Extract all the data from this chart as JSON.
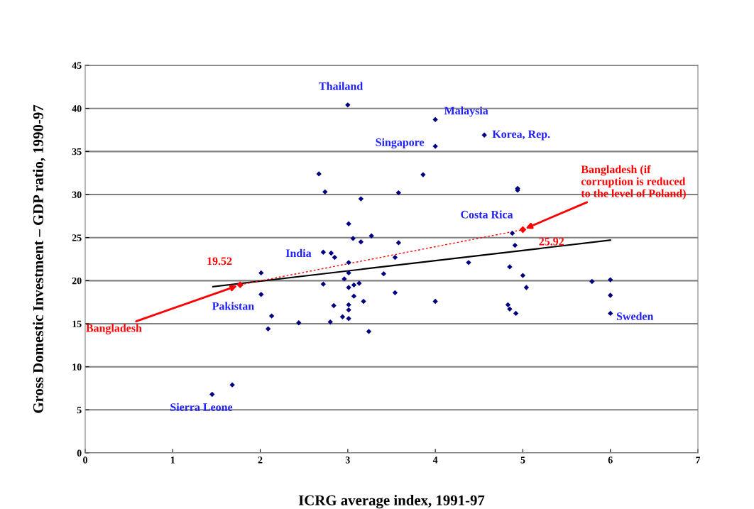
{
  "chart_data": {
    "type": "scatter",
    "xlabel": "ICRG average index, 1991-97",
    "ylabel": "Gross Domestic Investment – GDP ratio, 1990-97",
    "xlim": [
      0,
      7
    ],
    "xticks": [
      0,
      1,
      2,
      3,
      4,
      5,
      6,
      7
    ],
    "ylim": [
      0,
      45
    ],
    "yticks": [
      0,
      5,
      10,
      15,
      20,
      25,
      30,
      35,
      40,
      45
    ],
    "grid": "y",
    "marker": "diamond",
    "series": [
      {
        "color": "#000080",
        "x": [
          3.0,
          4.0,
          4.56,
          4.0,
          2.67,
          3.86,
          2.74,
          3.58,
          4.94,
          4.94,
          3.15,
          3.01,
          3.27,
          3.06,
          3.15,
          3.58,
          4.88,
          4.91,
          3.54,
          4.38,
          4.85,
          2.72,
          2.81,
          2.85,
          3.01,
          2.01,
          2.01,
          2.13,
          2.09,
          2.44,
          2.72,
          2.8,
          2.84,
          2.94,
          2.96,
          3.01,
          3.01,
          3.07,
          3.13,
          3.07,
          3.01,
          3.01,
          3.01,
          3.18,
          3.24,
          3.41,
          1.45,
          1.68,
          3.54,
          4.0,
          5.0,
          5.04,
          4.83,
          4.85,
          4.92,
          5.79,
          6.0,
          6.0,
          6.0
        ],
        "values": [
          40.4,
          38.7,
          36.9,
          35.6,
          32.4,
          32.3,
          30.3,
          30.2,
          30.5,
          30.7,
          29.5,
          26.6,
          25.2,
          24.9,
          24.5,
          24.4,
          25.5,
          24.1,
          22.7,
          22.1,
          21.6,
          23.3,
          23.2,
          22.7,
          22.1,
          20.9,
          18.4,
          15.9,
          14.4,
          15.1,
          19.6,
          15.2,
          17.1,
          15.8,
          20.2,
          20.9,
          19.2,
          19.5,
          19.7,
          18.2,
          17.2,
          16.6,
          15.6,
          17.6,
          14.1,
          20.8,
          6.8,
          7.9,
          18.6,
          17.6,
          20.6,
          19.2,
          17.2,
          16.7,
          16.2,
          19.9,
          20.1,
          18.3,
          16.2
        ]
      },
      {
        "type": "line",
        "color": "#000000",
        "line_style": "solid",
        "marker": "none",
        "x": [
          1.46,
          6.0
        ],
        "values": [
          19.3,
          24.7
        ]
      },
      {
        "type": "line",
        "color": "#ff0000",
        "line_style": "dotted",
        "marker": "diamond",
        "x": [
          1.77,
          5.0
        ],
        "values": [
          19.52,
          25.92
        ]
      }
    ],
    "annotations": [
      {
        "text": "Thailand",
        "x": 3.0,
        "y": 40.4
      },
      {
        "text": "Malaysia",
        "x": 4.0,
        "y": 38.7
      },
      {
        "text": "Korea, Rep.",
        "x": 4.56,
        "y": 36.9
      },
      {
        "text": "Singapore",
        "x": 4.0,
        "y": 35.6
      },
      {
        "text": "Costa Rica",
        "x": 4.88,
        "y": 25.5
      },
      {
        "text": "India",
        "x": 2.72,
        "y": 23.3
      },
      {
        "text": "Pakistan",
        "x": 2.13,
        "y": 15.9
      },
      {
        "text": "Sierra Leone",
        "x": 1.45,
        "y": 6.8
      },
      {
        "text": "Sweden",
        "x": 6.0,
        "y": 16.2
      },
      {
        "text": "19.52",
        "x": 1.77,
        "y": 19.52
      },
      {
        "text": "25.92",
        "x": 5.0,
        "y": 25.92
      },
      {
        "text": "Bangladesh",
        "x": 1.77,
        "y": 19.52
      },
      {
        "text": "Bangladesh (if\ncorruption is reduced\nto the level of Poland)",
        "x": 5.0,
        "y": 25.92
      }
    ]
  }
}
